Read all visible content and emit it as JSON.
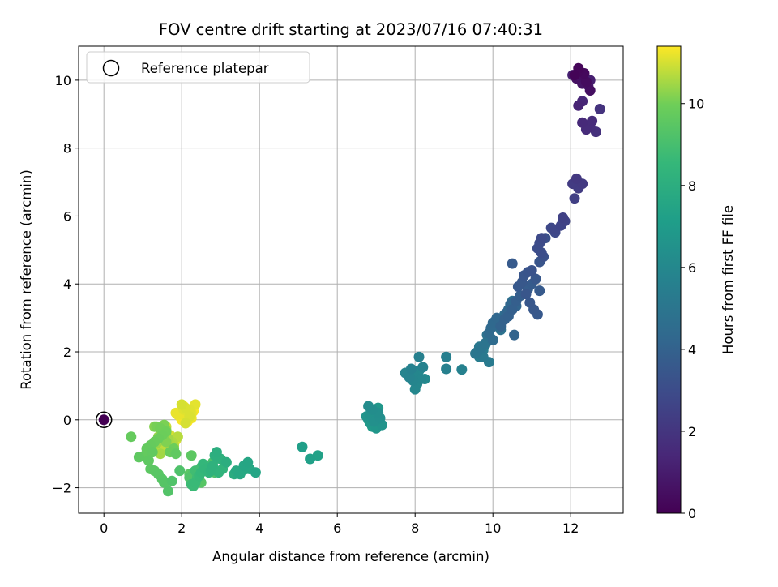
{
  "chart_data": {
    "type": "scatter",
    "title": "FOV centre drift starting at 2023/07/16 07:40:31",
    "xlabel": "Angular distance from reference (arcmin)",
    "ylabel": "Rotation from reference (arcmin)",
    "xlim": [
      -0.65,
      13.35
    ],
    "ylim": [
      -2.75,
      11.0
    ],
    "x_ticks": [
      0,
      2,
      4,
      6,
      8,
      10,
      12
    ],
    "y_ticks": [
      -2,
      0,
      2,
      4,
      6,
      8,
      10
    ],
    "grid": true,
    "legend": {
      "placement": "top-left",
      "entries": [
        "Reference platepar"
      ]
    },
    "colorbar": {
      "label": "Hours from first FF file",
      "colormap": "viridis",
      "range": [
        0,
        11.4
      ],
      "ticks": [
        0,
        2,
        4,
        6,
        8,
        10
      ]
    },
    "reference_point": {
      "x": 0,
      "y": 0,
      "hours": 0
    },
    "series": [
      {
        "x": [
          12.1,
          12.2,
          12.35,
          12.4,
          12.5,
          12.15,
          12.3,
          12.45,
          12.25,
          12.5,
          12.05,
          12.2,
          12.3,
          12.3,
          12.4,
          12.55,
          12.5,
          12.65,
          12.75,
          12.2,
          12.3,
          12.15,
          12.3,
          12.05,
          12.2,
          12.1,
          11.8,
          11.85,
          11.75,
          11.6,
          11.8,
          11.5,
          11.6,
          11.25,
          11.2,
          11.15,
          11.25,
          11.35,
          11.3,
          11.0,
          10.9,
          11.2,
          10.8,
          11.1,
          10.75,
          10.65,
          10.5,
          11.0,
          10.9,
          10.7,
          10.6,
          10.5,
          10.4,
          10.3,
          10.2,
          10.55,
          10.6,
          10.35,
          10.45,
          10.1,
          10.0,
          9.95,
          9.9,
          10.0,
          10.4,
          10.3,
          10.15,
          10.5,
          10.05,
          10.2,
          9.85,
          9.95,
          10.85,
          10.95,
          11.05,
          11.15,
          11.2,
          9.8,
          9.7,
          9.6,
          9.55,
          9.65,
          9.75,
          9.9,
          9.85,
          9.75,
          9.65,
          9.8,
          8.1,
          7.9,
          8.2,
          7.85,
          7.75,
          7.95,
          8.15,
          8.0,
          8.05,
          8.25,
          8.8,
          8.8,
          9.2,
          7.95,
          8.1,
          6.8,
          6.9,
          7.05,
          7.1,
          6.95,
          6.85,
          7.0,
          7.15,
          6.75,
          6.9,
          7.0,
          7.05,
          6.85,
          6.95,
          6.8,
          7.05,
          6.9,
          7.0,
          5.1,
          5.3,
          5.5,
          3.9,
          3.7,
          3.6,
          3.75,
          3.5,
          3.4,
          3.45,
          3.55,
          3.65,
          3.35,
          3.15,
          2.9,
          2.85,
          3.0,
          2.8,
          2.75,
          2.95,
          3.05,
          2.7,
          2.6,
          2.55,
          2.5,
          2.45,
          2.35,
          2.3,
          2.25,
          2.4,
          2.35,
          2.45,
          2.6,
          2.5,
          2.65,
          2.8,
          2.85,
          2.7,
          2.2,
          2.3,
          2.4,
          2.5,
          2.6,
          2.2,
          2.25,
          1.95,
          1.75,
          1.65,
          1.55,
          1.5,
          1.4,
          1.3,
          1.2,
          1.15,
          1.25,
          1.1,
          1.2,
          1.3,
          1.4,
          1.5,
          1.6,
          1.45,
          1.35,
          1.55,
          1.6,
          0.9,
          1.05,
          1.2,
          0.7,
          1.85,
          1.7,
          1.8,
          1.3,
          1.45,
          1.6,
          1.55,
          1.4,
          1.5,
          1.65,
          1.7,
          1.75,
          1.8,
          1.9,
          1.5,
          1.35,
          1.45,
          1.6,
          1.55,
          1.7,
          1.85,
          1.35,
          1.45,
          2.0,
          2.1,
          2.2,
          2.25,
          2.05,
          2.15,
          1.95,
          2.3,
          2.15,
          2.0,
          2.1,
          2.25,
          1.9,
          2.35,
          2.05,
          2.2,
          2.1,
          2.0,
          2.05,
          2.15,
          2.2,
          1.85
        ],
        "y": [
          10.15,
          10.35,
          10.2,
          9.95,
          9.7,
          10.05,
          9.9,
          9.85,
          10.0,
          10.0,
          10.15,
          9.25,
          9.38,
          8.75,
          8.55,
          8.8,
          8.62,
          8.48,
          9.15,
          10.25,
          10.15,
          7.1,
          6.95,
          6.95,
          6.82,
          6.52,
          5.95,
          5.85,
          5.72,
          5.6,
          5.82,
          5.65,
          5.52,
          5.35,
          5.2,
          5.05,
          4.92,
          5.35,
          4.8,
          4.4,
          4.35,
          4.65,
          4.25,
          4.15,
          4.05,
          3.92,
          4.6,
          4.0,
          3.85,
          3.65,
          3.5,
          3.25,
          3.05,
          2.95,
          2.75,
          2.5,
          3.35,
          3.15,
          3.4,
          3.0,
          2.85,
          2.7,
          2.55,
          2.35,
          3.25,
          3.1,
          2.8,
          3.5,
          2.9,
          2.65,
          2.5,
          2.4,
          3.7,
          3.45,
          3.25,
          3.1,
          3.8,
          2.25,
          2.1,
          2.0,
          1.95,
          2.15,
          1.85,
          1.7,
          2.3,
          2.05,
          1.85,
          2.2,
          1.85,
          1.5,
          1.55,
          1.25,
          1.38,
          1.15,
          1.2,
          0.9,
          1.05,
          1.2,
          1.85,
          1.5,
          1.48,
          1.35,
          1.45,
          0.4,
          0.3,
          0.2,
          0.05,
          -0.05,
          0.15,
          0.0,
          -0.15,
          0.1,
          0.25,
          -0.25,
          0.35,
          -0.1,
          0.05,
          0.0,
          0.2,
          -0.2,
          0.1,
          -0.8,
          -1.15,
          -1.05,
          -1.55,
          -1.25,
          -1.35,
          -1.45,
          -1.6,
          -1.5,
          -1.58,
          -1.5,
          -1.45,
          -1.6,
          -1.25,
          -0.95,
          -1.05,
          -1.15,
          -1.35,
          -1.5,
          -1.55,
          -1.45,
          -1.55,
          -1.45,
          -1.3,
          -1.55,
          -1.65,
          -1.85,
          -1.95,
          -1.9,
          -1.7,
          -1.5,
          -1.6,
          -1.45,
          -1.4,
          -1.35,
          -1.25,
          -1.55,
          -1.4,
          -1.7,
          -1.55,
          -1.75,
          -1.85,
          -1.5,
          -1.6,
          -1.05,
          -1.5,
          -1.8,
          -2.1,
          -1.85,
          -1.75,
          -1.6,
          -1.5,
          -1.45,
          -1.2,
          -0.95,
          -0.85,
          -0.75,
          -0.65,
          -0.55,
          -0.45,
          -0.35,
          -0.25,
          -0.2,
          -0.15,
          -0.65,
          -1.1,
          -1.05,
          -0.9,
          -0.5,
          -1.0,
          -0.95,
          -0.85,
          -0.2,
          -0.25,
          -0.3,
          -0.4,
          -0.5,
          -0.6,
          -0.55,
          -0.7,
          -0.65,
          -0.75,
          -0.5,
          -0.8,
          -0.9,
          -0.95,
          -0.2,
          -0.35,
          -0.45,
          -0.6,
          -0.7,
          -1.0,
          0.45,
          0.35,
          0.3,
          0.2,
          0.15,
          0.05,
          0.1,
          0.25,
          -0.05,
          0.0,
          0.2,
          0.05,
          0.15,
          0.45,
          0.3,
          0.1,
          -0.1,
          0.25,
          0.4,
          0.0,
          0.15,
          0.2
        ],
        "hours": [
          0.1,
          0.2,
          0.3,
          0.4,
          0.5,
          0.6,
          0.7,
          0.9,
          1.0,
          1.1,
          1.2,
          1.3,
          1.4,
          1.5,
          1.6,
          1.6,
          1.7,
          1.8,
          1.9,
          0.25,
          0.45,
          2.1,
          2.2,
          2.25,
          2.3,
          2.4,
          2.5,
          2.6,
          2.65,
          2.7,
          2.75,
          2.8,
          2.85,
          2.9,
          3.0,
          3.05,
          3.1,
          3.15,
          3.2,
          3.3,
          3.35,
          3.4,
          3.45,
          3.5,
          3.55,
          3.6,
          3.65,
          3.7,
          3.75,
          3.8,
          3.85,
          3.9,
          3.95,
          4.0,
          4.05,
          4.1,
          4.15,
          4.2,
          4.25,
          4.3,
          4.35,
          4.4,
          4.45,
          4.5,
          4.55,
          4.6,
          4.65,
          4.7,
          4.75,
          4.8,
          4.85,
          4.9,
          3.45,
          3.5,
          3.55,
          3.6,
          3.65,
          4.95,
          5.0,
          5.05,
          5.1,
          5.15,
          5.2,
          5.25,
          5.3,
          5.35,
          5.4,
          5.45,
          5.6,
          5.65,
          5.7,
          5.75,
          5.8,
          5.85,
          5.9,
          5.95,
          6.0,
          6.05,
          5.55,
          5.6,
          5.65,
          5.9,
          5.95,
          6.2,
          6.25,
          6.3,
          6.35,
          6.4,
          6.45,
          6.5,
          6.55,
          6.6,
          6.65,
          6.7,
          6.75,
          6.8,
          6.85,
          6.9,
          6.95,
          7.0,
          7.05,
          7.2,
          7.25,
          7.3,
          7.5,
          7.55,
          7.6,
          7.65,
          7.7,
          7.75,
          7.8,
          7.85,
          7.9,
          7.95,
          8.0,
          8.05,
          8.1,
          8.15,
          8.2,
          8.25,
          8.3,
          8.35,
          8.4,
          8.45,
          8.5,
          8.55,
          8.6,
          8.65,
          8.7,
          8.75,
          8.8,
          8.85,
          8.9,
          8.95,
          9.0,
          9.05,
          9.1,
          9.15,
          9.2,
          9.25,
          9.3,
          9.35,
          9.4,
          9.45,
          9.5,
          9.55,
          9.2,
          9.25,
          9.3,
          9.35,
          9.4,
          9.45,
          9.5,
          9.55,
          9.6,
          9.65,
          9.7,
          9.75,
          9.8,
          9.85,
          9.9,
          9.95,
          10.0,
          10.05,
          10.1,
          10.15,
          9.6,
          9.7,
          9.8,
          9.75,
          9.65,
          9.85,
          9.9,
          10.2,
          10.25,
          10.3,
          10.35,
          10.4,
          10.45,
          10.5,
          10.55,
          10.6,
          10.65,
          10.7,
          10.75,
          10.8,
          10.85,
          10.9,
          10.95,
          11.0,
          11.05,
          10.4,
          10.5,
          11.0,
          11.05,
          11.1,
          11.15,
          11.2,
          11.25,
          11.3,
          11.35,
          11.4,
          11.35,
          11.3,
          11.25,
          11.2,
          11.15,
          11.1,
          11.05,
          11.0,
          11.35,
          11.4,
          11.3,
          11.25,
          11.2
        ]
      }
    ]
  }
}
